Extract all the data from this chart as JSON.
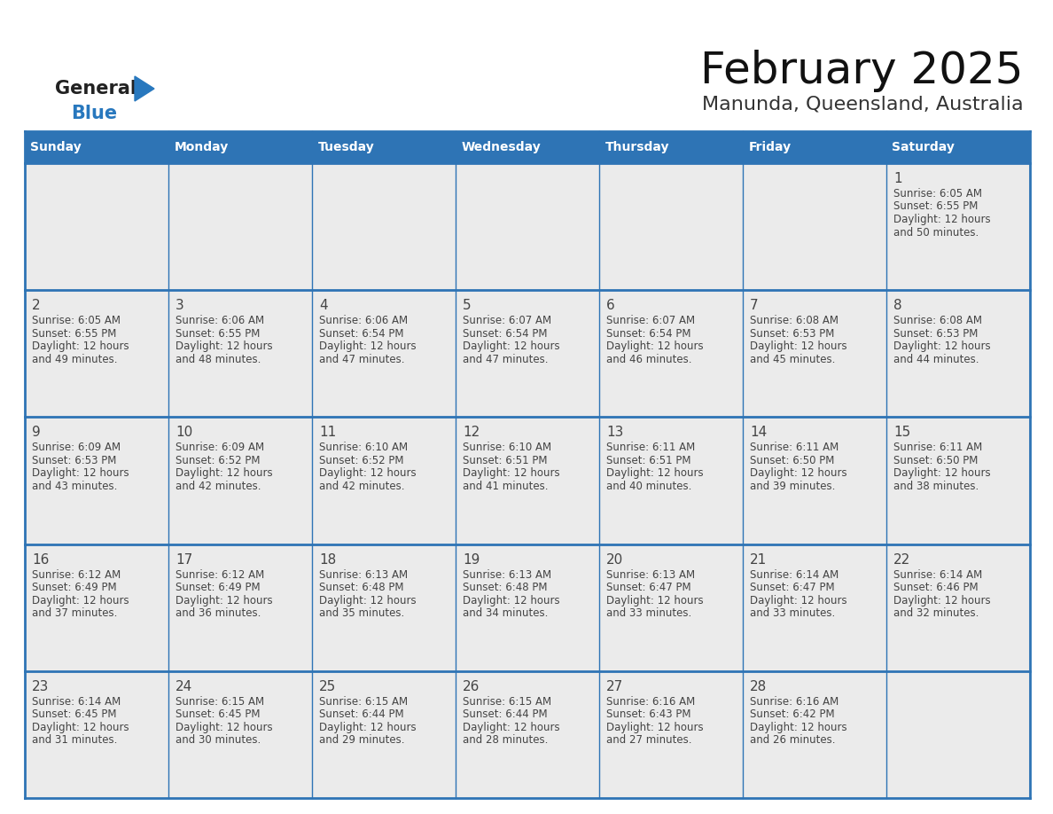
{
  "title": "February 2025",
  "subtitle": "Manunda, Queensland, Australia",
  "header_bg": "#2E74B5",
  "header_text_color": "#FFFFFF",
  "day_names": [
    "Sunday",
    "Monday",
    "Tuesday",
    "Wednesday",
    "Thursday",
    "Friday",
    "Saturday"
  ],
  "cell_bg": "#EBEBEB",
  "border_color": "#2E74B5",
  "number_color": "#444444",
  "text_color": "#444444",
  "logo_general_color": "#222222",
  "logo_blue_color": "#2878BE",
  "days": [
    {
      "day": 1,
      "col": 6,
      "row": 0,
      "sunrise": "6:05 AM",
      "sunset": "6:55 PM",
      "daylight": "12 hours",
      "daylight2": "and 50 minutes."
    },
    {
      "day": 2,
      "col": 0,
      "row": 1,
      "sunrise": "6:05 AM",
      "sunset": "6:55 PM",
      "daylight": "12 hours",
      "daylight2": "and 49 minutes."
    },
    {
      "day": 3,
      "col": 1,
      "row": 1,
      "sunrise": "6:06 AM",
      "sunset": "6:55 PM",
      "daylight": "12 hours",
      "daylight2": "and 48 minutes."
    },
    {
      "day": 4,
      "col": 2,
      "row": 1,
      "sunrise": "6:06 AM",
      "sunset": "6:54 PM",
      "daylight": "12 hours",
      "daylight2": "and 47 minutes."
    },
    {
      "day": 5,
      "col": 3,
      "row": 1,
      "sunrise": "6:07 AM",
      "sunset": "6:54 PM",
      "daylight": "12 hours",
      "daylight2": "and 47 minutes."
    },
    {
      "day": 6,
      "col": 4,
      "row": 1,
      "sunrise": "6:07 AM",
      "sunset": "6:54 PM",
      "daylight": "12 hours",
      "daylight2": "and 46 minutes."
    },
    {
      "day": 7,
      "col": 5,
      "row": 1,
      "sunrise": "6:08 AM",
      "sunset": "6:53 PM",
      "daylight": "12 hours",
      "daylight2": "and 45 minutes."
    },
    {
      "day": 8,
      "col": 6,
      "row": 1,
      "sunrise": "6:08 AM",
      "sunset": "6:53 PM",
      "daylight": "12 hours",
      "daylight2": "and 44 minutes."
    },
    {
      "day": 9,
      "col": 0,
      "row": 2,
      "sunrise": "6:09 AM",
      "sunset": "6:53 PM",
      "daylight": "12 hours",
      "daylight2": "and 43 minutes."
    },
    {
      "day": 10,
      "col": 1,
      "row": 2,
      "sunrise": "6:09 AM",
      "sunset": "6:52 PM",
      "daylight": "12 hours",
      "daylight2": "and 42 minutes."
    },
    {
      "day": 11,
      "col": 2,
      "row": 2,
      "sunrise": "6:10 AM",
      "sunset": "6:52 PM",
      "daylight": "12 hours",
      "daylight2": "and 42 minutes."
    },
    {
      "day": 12,
      "col": 3,
      "row": 2,
      "sunrise": "6:10 AM",
      "sunset": "6:51 PM",
      "daylight": "12 hours",
      "daylight2": "and 41 minutes."
    },
    {
      "day": 13,
      "col": 4,
      "row": 2,
      "sunrise": "6:11 AM",
      "sunset": "6:51 PM",
      "daylight": "12 hours",
      "daylight2": "and 40 minutes."
    },
    {
      "day": 14,
      "col": 5,
      "row": 2,
      "sunrise": "6:11 AM",
      "sunset": "6:50 PM",
      "daylight": "12 hours",
      "daylight2": "and 39 minutes."
    },
    {
      "day": 15,
      "col": 6,
      "row": 2,
      "sunrise": "6:11 AM",
      "sunset": "6:50 PM",
      "daylight": "12 hours",
      "daylight2": "and 38 minutes."
    },
    {
      "day": 16,
      "col": 0,
      "row": 3,
      "sunrise": "6:12 AM",
      "sunset": "6:49 PM",
      "daylight": "12 hours",
      "daylight2": "and 37 minutes."
    },
    {
      "day": 17,
      "col": 1,
      "row": 3,
      "sunrise": "6:12 AM",
      "sunset": "6:49 PM",
      "daylight": "12 hours",
      "daylight2": "and 36 minutes."
    },
    {
      "day": 18,
      "col": 2,
      "row": 3,
      "sunrise": "6:13 AM",
      "sunset": "6:48 PM",
      "daylight": "12 hours",
      "daylight2": "and 35 minutes."
    },
    {
      "day": 19,
      "col": 3,
      "row": 3,
      "sunrise": "6:13 AM",
      "sunset": "6:48 PM",
      "daylight": "12 hours",
      "daylight2": "and 34 minutes."
    },
    {
      "day": 20,
      "col": 4,
      "row": 3,
      "sunrise": "6:13 AM",
      "sunset": "6:47 PM",
      "daylight": "12 hours",
      "daylight2": "and 33 minutes."
    },
    {
      "day": 21,
      "col": 5,
      "row": 3,
      "sunrise": "6:14 AM",
      "sunset": "6:47 PM",
      "daylight": "12 hours",
      "daylight2": "and 33 minutes."
    },
    {
      "day": 22,
      "col": 6,
      "row": 3,
      "sunrise": "6:14 AM",
      "sunset": "6:46 PM",
      "daylight": "12 hours",
      "daylight2": "and 32 minutes."
    },
    {
      "day": 23,
      "col": 0,
      "row": 4,
      "sunrise": "6:14 AM",
      "sunset": "6:45 PM",
      "daylight": "12 hours",
      "daylight2": "and 31 minutes."
    },
    {
      "day": 24,
      "col": 1,
      "row": 4,
      "sunrise": "6:15 AM",
      "sunset": "6:45 PM",
      "daylight": "12 hours",
      "daylight2": "and 30 minutes."
    },
    {
      "day": 25,
      "col": 2,
      "row": 4,
      "sunrise": "6:15 AM",
      "sunset": "6:44 PM",
      "daylight": "12 hours",
      "daylight2": "and 29 minutes."
    },
    {
      "day": 26,
      "col": 3,
      "row": 4,
      "sunrise": "6:15 AM",
      "sunset": "6:44 PM",
      "daylight": "12 hours",
      "daylight2": "and 28 minutes."
    },
    {
      "day": 27,
      "col": 4,
      "row": 4,
      "sunrise": "6:16 AM",
      "sunset": "6:43 PM",
      "daylight": "12 hours",
      "daylight2": "and 27 minutes."
    },
    {
      "day": 28,
      "col": 5,
      "row": 4,
      "sunrise": "6:16 AM",
      "sunset": "6:42 PM",
      "daylight": "12 hours",
      "daylight2": "and 26 minutes."
    }
  ]
}
